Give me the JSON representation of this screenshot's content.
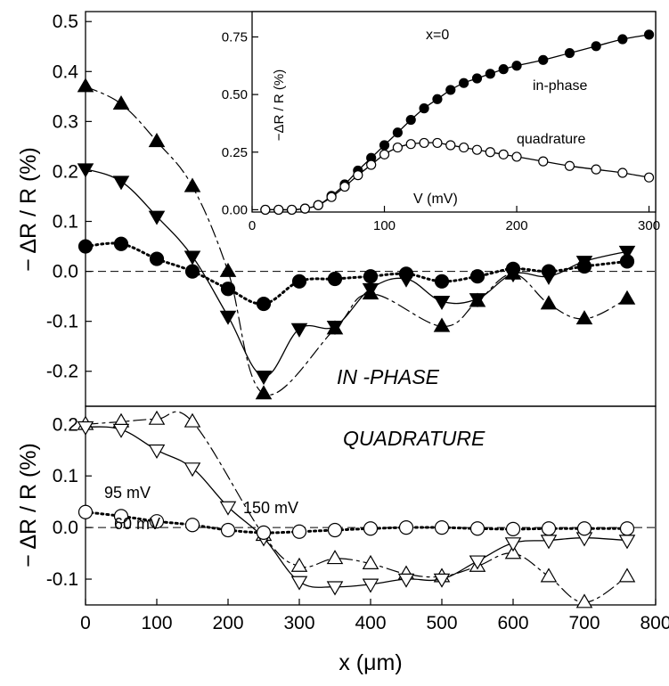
{
  "chart_data": [
    {
      "id": "top-main",
      "type": "line",
      "panel_label": "IN -PHASE",
      "ylabel": "− ΔR / R (%)",
      "xlim": [
        0,
        800
      ],
      "ylim": [
        -0.27,
        0.52
      ],
      "yticks": [
        "0.5",
        "0.4",
        "0.3",
        "0.2",
        "0.1",
        "0.0",
        "-0.1",
        "-0.2"
      ],
      "ytick_values": [
        0.5,
        0.4,
        0.3,
        0.2,
        0.1,
        0.0,
        -0.1,
        -0.2
      ],
      "zero_line": "dashed",
      "series": [
        {
          "marker": "triangle-up-filled",
          "line": "dash-dot",
          "x": [
            0,
            50,
            100,
            150,
            200,
            250,
            350,
            400,
            500,
            550,
            600,
            650,
            700,
            760
          ],
          "y": [
            0.37,
            0.335,
            0.26,
            0.17,
            0.0,
            -0.245,
            -0.115,
            -0.045,
            -0.11,
            -0.06,
            -0.005,
            -0.065,
            -0.095,
            -0.055
          ]
        },
        {
          "marker": "triangle-down-filled",
          "line": "solid",
          "x": [
            0,
            50,
            100,
            150,
            200,
            250,
            300,
            350,
            400,
            450,
            500,
            550,
            600,
            650,
            700,
            760
          ],
          "y": [
            0.205,
            0.18,
            0.11,
            0.03,
            -0.09,
            -0.21,
            -0.115,
            -0.11,
            -0.035,
            -0.015,
            -0.06,
            -0.055,
            -0.005,
            -0.01,
            0.02,
            0.04
          ]
        },
        {
          "marker": "circle-filled",
          "line": "dotted",
          "x": [
            0,
            50,
            100,
            150,
            200,
            250,
            300,
            350,
            400,
            450,
            500,
            550,
            600,
            650,
            700,
            760
          ],
          "y": [
            0.05,
            0.055,
            0.025,
            0.0,
            -0.035,
            -0.065,
            -0.02,
            -0.015,
            -0.01,
            -0.005,
            -0.02,
            -0.01,
            0.005,
            0.0,
            0.01,
            0.02
          ]
        }
      ]
    },
    {
      "id": "inset",
      "type": "line",
      "xlabel": "V (mV)",
      "ylabel": "−ΔR / R (%)",
      "xlim": [
        0,
        305
      ],
      "ylim": [
        -0.01,
        0.86
      ],
      "xticks": [
        "0",
        "100",
        "200",
        "300"
      ],
      "xtick_values": [
        0,
        100,
        200,
        300
      ],
      "yticks": [
        "0.75",
        "0.50",
        "0.25",
        "0.00"
      ],
      "ytick_values": [
        0.75,
        0.5,
        0.25,
        0.0
      ],
      "annotations": [
        "x=0",
        "in-phase",
        "quadrature"
      ],
      "series": [
        {
          "name": "in-phase",
          "marker": "circle-filled",
          "line": "solid",
          "x": [
            10,
            20,
            30,
            40,
            50,
            60,
            70,
            80,
            90,
            100,
            110,
            120,
            130,
            140,
            150,
            160,
            170,
            180,
            190,
            200,
            220,
            240,
            260,
            280,
            300
          ],
          "y": [
            0.0,
            0.0,
            0.0,
            0.005,
            0.02,
            0.06,
            0.11,
            0.17,
            0.225,
            0.28,
            0.335,
            0.39,
            0.44,
            0.48,
            0.52,
            0.55,
            0.57,
            0.59,
            0.61,
            0.625,
            0.65,
            0.68,
            0.71,
            0.74,
            0.76
          ]
        },
        {
          "name": "quadrature",
          "marker": "circle-open",
          "line": "solid",
          "x": [
            10,
            20,
            30,
            40,
            50,
            60,
            70,
            80,
            90,
            100,
            110,
            120,
            130,
            140,
            150,
            160,
            170,
            180,
            190,
            200,
            220,
            240,
            260,
            280,
            300
          ],
          "y": [
            0.0,
            0.0,
            0.0,
            0.005,
            0.02,
            0.055,
            0.1,
            0.15,
            0.195,
            0.24,
            0.27,
            0.285,
            0.29,
            0.29,
            0.28,
            0.27,
            0.26,
            0.25,
            0.24,
            0.23,
            0.21,
            0.19,
            0.175,
            0.16,
            0.14
          ]
        }
      ]
    },
    {
      "id": "bottom-main",
      "type": "line",
      "panel_label": "QUADRATURE",
      "xlabel": "x (μm)",
      "ylabel": "− ΔR / R (%)",
      "xlim": [
        0,
        800
      ],
      "ylim": [
        -0.15,
        0.235
      ],
      "xticks": [
        "0",
        "100",
        "200",
        "300",
        "400",
        "500",
        "600",
        "700",
        "800"
      ],
      "xtick_values": [
        0,
        100,
        200,
        300,
        400,
        500,
        600,
        700,
        800
      ],
      "yticks": [
        "0.2",
        "0.1",
        "0.0",
        "-0.1"
      ],
      "ytick_values": [
        0.2,
        0.1,
        0.0,
        -0.1
      ],
      "zero_line": "dashed",
      "annotations": [
        "95 mV",
        "150 mV",
        "60 mV"
      ],
      "series": [
        {
          "name": "150 mV",
          "marker": "triangle-up-open",
          "line": "dash-dot",
          "x": [
            0,
            50,
            100,
            150,
            250,
            300,
            350,
            400,
            450,
            500,
            550,
            600,
            650,
            700,
            760
          ],
          "y": [
            0.2,
            0.205,
            0.21,
            0.205,
            -0.015,
            -0.075,
            -0.06,
            -0.07,
            -0.09,
            -0.095,
            -0.075,
            -0.05,
            -0.095,
            -0.145,
            -0.095
          ]
        },
        {
          "name": "95 mV",
          "marker": "triangle-down-open",
          "line": "solid",
          "x": [
            0,
            50,
            100,
            150,
            200,
            250,
            300,
            350,
            400,
            450,
            500,
            550,
            600,
            650,
            700,
            760
          ],
          "y": [
            0.195,
            0.19,
            0.15,
            0.115,
            0.04,
            -0.02,
            -0.105,
            -0.115,
            -0.11,
            -0.1,
            -0.1,
            -0.065,
            -0.03,
            -0.025,
            -0.02,
            -0.025
          ]
        },
        {
          "name": "60 mV",
          "marker": "circle-open",
          "line": "dotted",
          "x": [
            0,
            50,
            100,
            150,
            200,
            250,
            300,
            350,
            400,
            450,
            500,
            550,
            600,
            650,
            700,
            760
          ],
          "y": [
            0.03,
            0.022,
            0.012,
            0.005,
            -0.005,
            -0.01,
            -0.008,
            -0.005,
            -0.002,
            0.0,
            0.0,
            -0.002,
            -0.003,
            -0.002,
            -0.002,
            -0.002
          ]
        }
      ]
    }
  ]
}
